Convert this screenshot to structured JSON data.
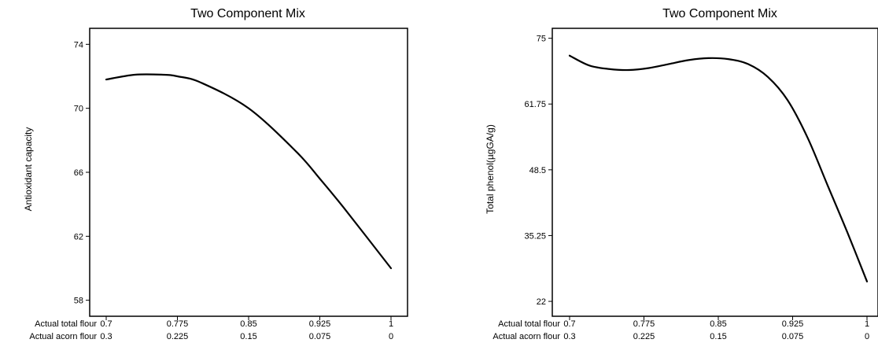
{
  "chart_data": [
    {
      "type": "line",
      "title": "Two Component Mix",
      "xlabel": "",
      "ylabel": "Antioxidant capacity",
      "ylim": [
        57,
        75
      ],
      "xlim": [
        0.7,
        1
      ],
      "yticks": [
        58,
        62,
        66,
        70,
        74
      ],
      "x_axis_rows": [
        {
          "label": "Actual total flour",
          "ticks": [
            "0.7",
            "0.775",
            "0.85",
            "0.925",
            "1"
          ]
        },
        {
          "label": "Actual acorn flour",
          "ticks": [
            "0.3",
            "0.225",
            "0.15",
            "0.075",
            "0"
          ]
        }
      ],
      "series": [
        {
          "x": [
            0.7,
            0.73,
            0.76,
            0.775,
            0.8,
            0.85,
            0.9,
            0.925,
            0.95,
            1.0
          ],
          "y": [
            71.8,
            72.1,
            72.1,
            72.0,
            71.6,
            70.0,
            67.3,
            65.6,
            63.8,
            60.0
          ]
        }
      ]
    },
    {
      "type": "line",
      "title": "Two Component Mix",
      "xlabel": "",
      "ylabel": "Total phenol(µgGA/g)",
      "ylim": [
        19,
        77
      ],
      "xlim": [
        0.7,
        1
      ],
      "yticks": [
        22,
        35.25,
        48.5,
        61.75,
        75
      ],
      "x_axis_rows": [
        {
          "label": "Actual total flour",
          "ticks": [
            "0.7",
            "0.775",
            "0.85",
            "0.925",
            "1"
          ]
        },
        {
          "label": "Actual acorn flour",
          "ticks": [
            "0.3",
            "0.225",
            "0.15",
            "0.075",
            "0"
          ]
        }
      ],
      "series": [
        {
          "x": [
            0.7,
            0.72,
            0.74,
            0.76,
            0.78,
            0.8,
            0.82,
            0.84,
            0.86,
            0.88,
            0.9,
            0.92,
            0.94,
            0.96,
            0.98,
            1.0
          ],
          "y": [
            71.5,
            69.5,
            68.8,
            68.6,
            69.0,
            69.8,
            70.6,
            71.0,
            70.8,
            69.8,
            67.2,
            62.5,
            55.0,
            45.5,
            36.0,
            26.0
          ]
        }
      ]
    }
  ]
}
